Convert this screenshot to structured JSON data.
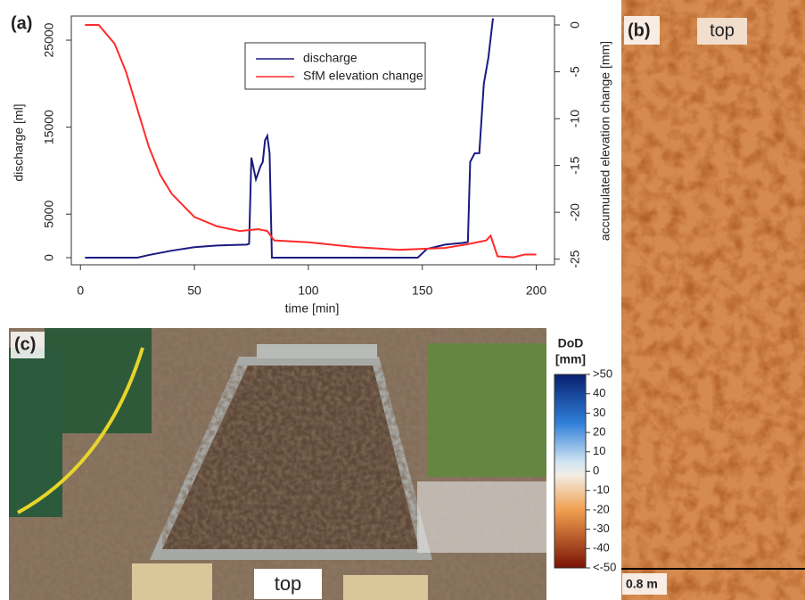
{
  "chart_data": {
    "type": "line",
    "panel_label": "(a)",
    "xlabel": "time [min]",
    "ylabel": "discharge [ml]",
    "y2label": "accumulated elevation change [mm]",
    "xlim": [
      -4,
      208
    ],
    "xticks": [
      0,
      50,
      100,
      150,
      200
    ],
    "ylim": [
      -820,
      27770
    ],
    "yticks": [
      0,
      5000,
      15000,
      25000
    ],
    "y2lim": [
      -25.6,
      0.95
    ],
    "y2ticks": [
      0,
      -5,
      -10,
      -15,
      -20,
      -25
    ],
    "legend": "top-center",
    "series": [
      {
        "name": "discharge",
        "color": "#1a1a80",
        "x": [
          2,
          25,
          30,
          40,
          50,
          60,
          73,
          74,
          75,
          77,
          79,
          80,
          81,
          82,
          83,
          84,
          148,
          152,
          160,
          168,
          170,
          171,
          173,
          175,
          177,
          179,
          181
        ],
        "values": [
          0,
          0,
          300,
          800,
          1200,
          1400,
          1500,
          1600,
          11500,
          9000,
          10500,
          11000,
          13500,
          14000,
          12000,
          0,
          0,
          1000,
          1500,
          1700,
          1800,
          11000,
          12000,
          12000,
          20000,
          23000,
          27500
        ]
      },
      {
        "name": "SfM elevation change",
        "color": "#ff2a2a",
        "axis": "y2",
        "x": [
          2,
          8,
          15,
          20,
          25,
          30,
          35,
          40,
          50,
          60,
          70,
          78,
          82,
          85,
          100,
          120,
          140,
          160,
          170,
          178,
          180,
          183,
          190,
          195,
          200
        ],
        "values": [
          0,
          0,
          -2,
          -5,
          -9,
          -13,
          -16,
          -18,
          -20.5,
          -21.5,
          -22,
          -21.8,
          -22,
          -23,
          -23.2,
          -23.7,
          -24,
          -23.8,
          -23.4,
          -23,
          -22.5,
          -24.7,
          -24.8,
          -24.5,
          -24.5
        ]
      }
    ]
  },
  "panel_b": {
    "label": "(b)",
    "top": "top",
    "scale": "0.8 m"
  },
  "panel_c": {
    "label": "(c)",
    "top": "top"
  },
  "colorbar": {
    "title_lines": [
      "DoD",
      "[mm]"
    ],
    "lim": [
      -50,
      50
    ],
    "ticks": [
      {
        "value": 50,
        "label": ">50"
      },
      40,
      30,
      20,
      10,
      0,
      -10,
      -20,
      -30,
      -40,
      {
        "value": -50,
        "label": "<-50"
      }
    ]
  }
}
